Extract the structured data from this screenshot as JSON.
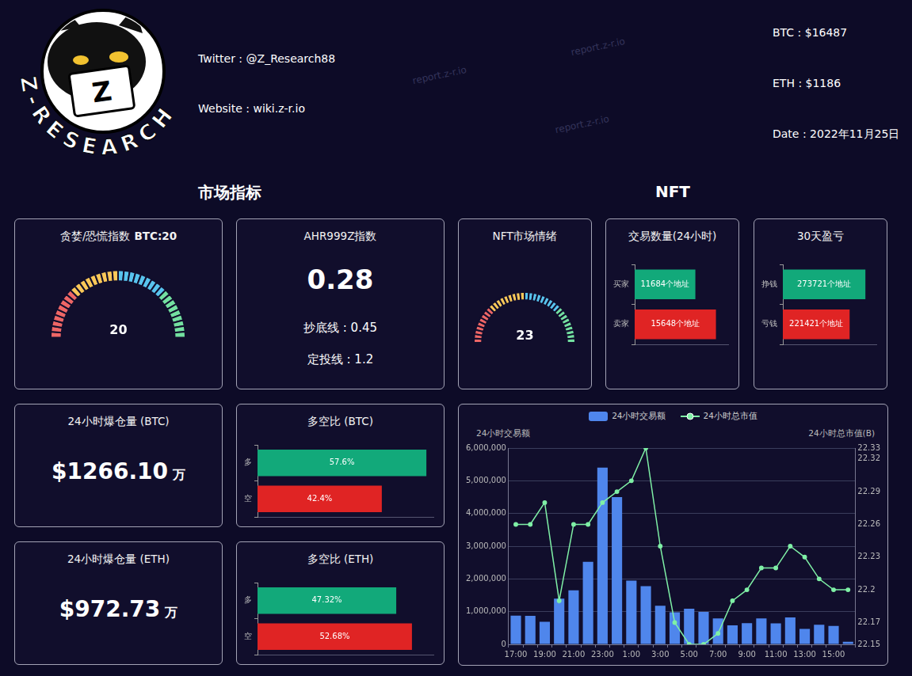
{
  "header": {
    "logo_text": "Z-RESEARCH",
    "logo_letter": "Z",
    "twitter": "Twitter : @Z_Research88",
    "website": "Website : wiki.z-r.io",
    "prices": [
      "BTC : $16487",
      "ETH : $1186"
    ],
    "date": "Date : 2022年11月25日"
  },
  "watermark": "report.z-r.io",
  "sections": [
    "市场指标",
    "NFT"
  ],
  "ahr999": {
    "title": "AHR999Z指数",
    "value": "0.28",
    "lines": [
      "抄底线 : 0.45",
      "定投线 : 1.2"
    ]
  },
  "liquidations": [
    {
      "title": "24小时爆仓量 (BTC)",
      "value": "$1266.10",
      "unit": "万"
    },
    {
      "title": "24小时爆仓量 (ETH)",
      "value": "$972.73",
      "unit": "万"
    }
  ],
  "chart_data": [
    {
      "type": "gauge",
      "title": "贪婪/恐慌指数",
      "title_bold": "BTC:20",
      "value": 20,
      "ylim": [
        0,
        100
      ],
      "colors": [
        "#ee6666",
        "#fac858",
        "#58c4ee",
        "#73e0a0"
      ]
    },
    {
      "type": "gauge",
      "title": "NFT市场情绪",
      "value": 23,
      "ylim": [
        0,
        100
      ],
      "colors": [
        "#ee6666",
        "#fac858",
        "#58c4ee",
        "#73e0a0"
      ]
    },
    {
      "type": "bar",
      "orientation": "horizontal",
      "title": "交易数量(24小时)",
      "categories": [
        "买家",
        "卖家"
      ],
      "values": [
        11684,
        15648
      ],
      "value_labels": [
        "11684个地址",
        "15648个地址"
      ],
      "colors": [
        "#12a97a",
        "#e02424"
      ],
      "xlim": [
        0,
        18000
      ],
      "data_labels": true,
      "tick_labels": "y",
      "grid": false
    },
    {
      "type": "bar",
      "orientation": "horizontal",
      "title": "30天盈亏",
      "categories": [
        "挣钱",
        "亏钱"
      ],
      "values": [
        273721,
        221421
      ],
      "value_labels": [
        "273721个地址",
        "221421个地址"
      ],
      "colors": [
        "#12a97a",
        "#e02424"
      ],
      "xlim": [
        0,
        310000
      ],
      "data_labels": true,
      "tick_labels": "y",
      "grid": false
    },
    {
      "type": "bar",
      "orientation": "horizontal",
      "title": "多空比 (BTC)",
      "categories": [
        "多",
        "空"
      ],
      "values": [
        57.6,
        42.4
      ],
      "value_labels": [
        "57.6%",
        "42.4%"
      ],
      "colors": [
        "#12a97a",
        "#e02424"
      ],
      "xlim": [
        0,
        60
      ],
      "data_labels": true,
      "tick_labels": "y",
      "grid": false
    },
    {
      "type": "bar",
      "orientation": "horizontal",
      "title": "多空比 (ETH)",
      "categories": [
        "多",
        "空"
      ],
      "values": [
        47.32,
        52.68
      ],
      "value_labels": [
        "47.32%",
        "52.68%"
      ],
      "colors": [
        "#12a97a",
        "#e02424"
      ],
      "xlim": [
        0,
        60
      ],
      "data_labels": true,
      "tick_labels": "y",
      "grid": false
    },
    {
      "type": "bar",
      "legend": "top",
      "grid": true,
      "ylabel": "24小时交易额",
      "y2label": "24小时总市值(B)",
      "categories": [
        "17:00",
        null,
        "19:00",
        null,
        "21:00",
        null,
        "23:00",
        null,
        "1:00",
        null,
        "3:00",
        null,
        "5:00",
        null,
        "7:00",
        null,
        "9:00",
        null,
        "11:00",
        null,
        "13:00",
        null,
        "15:00",
        null
      ],
      "series": [
        {
          "name": "24小时交易额",
          "type": "bar",
          "color": "#4f86ec",
          "values": [
            880000,
            870000,
            690000,
            1400000,
            1650000,
            2520000,
            5400000,
            4500000,
            1950000,
            1780000,
            1180000,
            980000,
            1090000,
            990000,
            790000,
            580000,
            650000,
            790000,
            640000,
            820000,
            470000,
            600000,
            560000,
            80000
          ]
        },
        {
          "name": "24小时总市值",
          "type": "line",
          "color": "#7ff0a6",
          "axis": "y2",
          "marker": "circle",
          "values": [
            22.26,
            22.26,
            22.28,
            22.19,
            22.26,
            22.26,
            22.28,
            22.29,
            22.3,
            22.33,
            22.24,
            22.17,
            22.15,
            22.15,
            22.16,
            22.19,
            22.2,
            22.22,
            22.22,
            22.24,
            22.23,
            22.21,
            22.2,
            22.2
          ]
        }
      ],
      "ylim": [
        0,
        6000000
      ],
      "yticks": [
        0,
        {
          "value": 1000000,
          "label": "1,000,000"
        },
        {
          "value": 2000000,
          "label": "2,000,000"
        },
        {
          "value": 3000000,
          "label": "3,000,000"
        },
        {
          "value": 4000000,
          "label": "4,000,000"
        },
        {
          "value": 5000000,
          "label": "5,000,000"
        },
        {
          "value": 6000000,
          "label": "6,000,000"
        }
      ],
      "y2lim": [
        22.15,
        22.33
      ],
      "y2ticks": [
        22.15,
        22.17,
        22.2,
        22.23,
        22.26,
        22.29,
        22.32,
        22.33
      ]
    }
  ]
}
